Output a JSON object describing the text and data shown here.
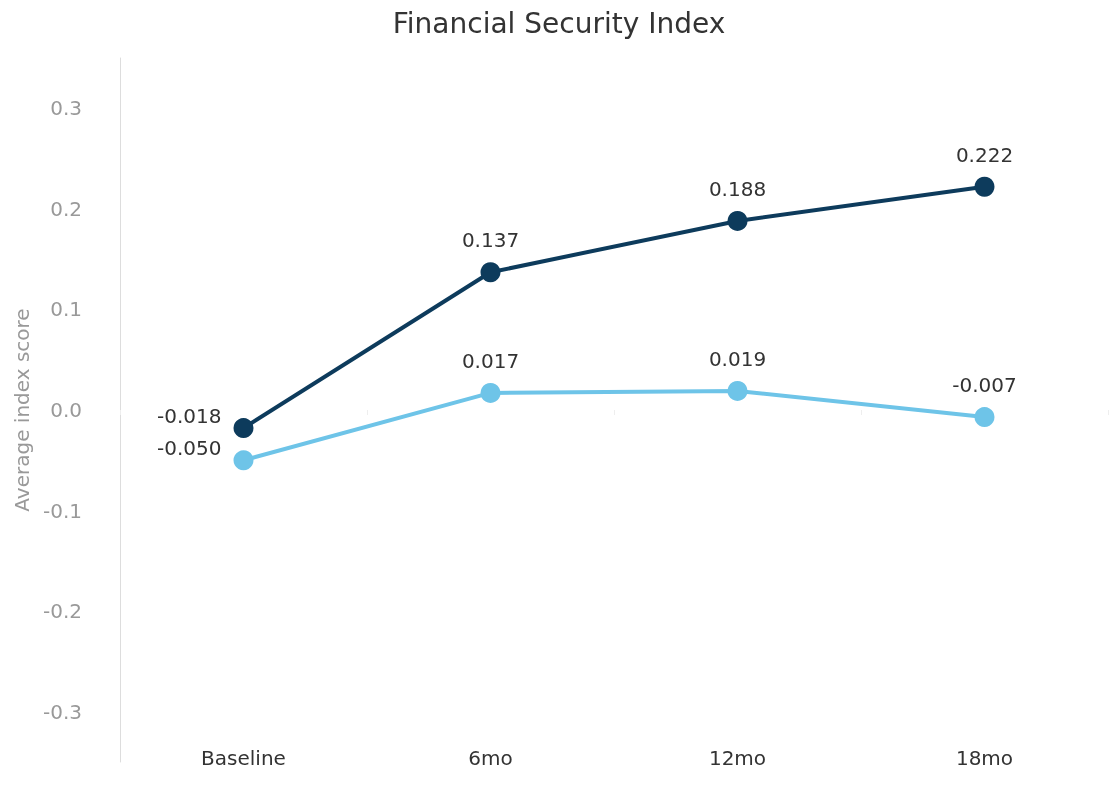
{
  "chart_data": {
    "type": "line",
    "title": "Financial Security Index",
    "ylabel": "Average index score",
    "categories": [
      "Baseline",
      "6mo",
      "12mo",
      "18mo"
    ],
    "series": [
      {
        "color": "#0d3b5c",
        "values": [
          -0.018,
          0.137,
          0.188,
          0.222
        ],
        "value_labels": [
          "-0.018",
          "0.137",
          "0.188",
          "0.222"
        ]
      },
      {
        "color": "#6ec4e8",
        "values": [
          -0.05,
          0.017,
          0.019,
          -0.007
        ],
        "value_labels": [
          "-0.050",
          "0.017",
          "0.019",
          "-0.007"
        ]
      }
    ],
    "ylim": [
      -0.35,
      0.35
    ],
    "yticks": [
      -0.3,
      -0.2,
      -0.1,
      {
        "value": 0,
        "label": "0.0"
      },
      0.1,
      0.2,
      0.3
    ],
    "marker": "circle",
    "grid": false
  }
}
